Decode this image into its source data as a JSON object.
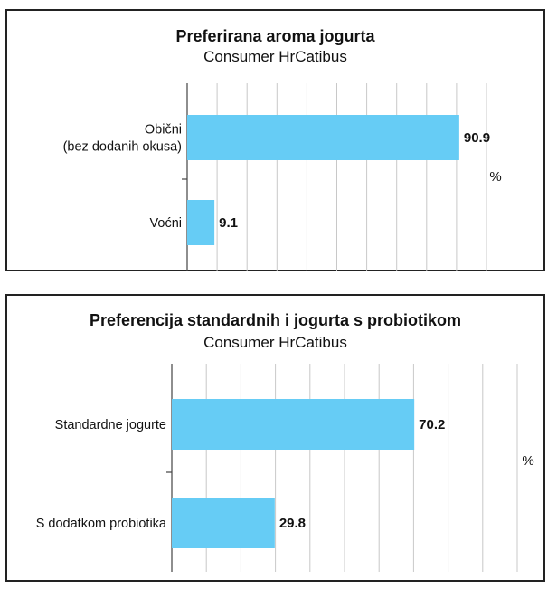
{
  "chart_data": [
    {
      "type": "bar",
      "orientation": "horizontal",
      "title": "Preferirana aroma jogurta",
      "subtitle": "Consumer HrCatibus",
      "categories": [
        "Obični\n(bez dodanih okusa)",
        "Voćni"
      ],
      "values": [
        90.9,
        9.1
      ],
      "value_labels": [
        "90.9",
        "9.1"
      ],
      "unit": "%",
      "xlim": [
        0,
        100
      ],
      "grid": true,
      "bar_color": "#66ccf5"
    },
    {
      "type": "bar",
      "orientation": "horizontal",
      "title": "Preferencija standardnih i jogurta s probiotikom",
      "subtitle": "Consumer HrCatibus",
      "categories": [
        "Standardne jogurte",
        "S dodatkom probiotika"
      ],
      "values": [
        70.2,
        29.8
      ],
      "value_labels": [
        "70.2",
        "29.8"
      ],
      "unit": "%",
      "xlim": [
        0,
        100
      ],
      "grid": true,
      "bar_color": "#66ccf5"
    }
  ]
}
